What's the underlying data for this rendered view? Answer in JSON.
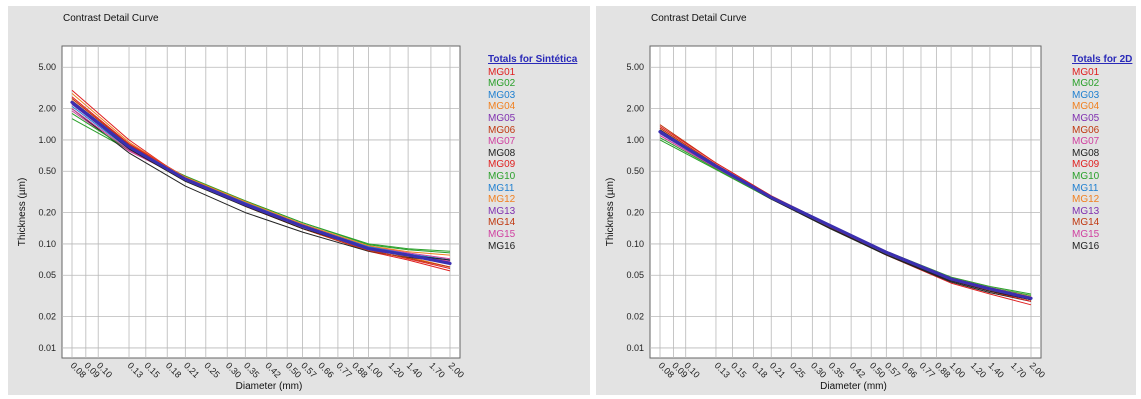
{
  "chart_data": [
    {
      "type": "line",
      "title": "Contrast Detail Curve",
      "xlabel": "Diameter (mm)",
      "ylabel": "Thickness (µm)",
      "yscale": "log",
      "ylim": [
        0.008,
        8
      ],
      "y_ticks": [
        5.0,
        2.0,
        1.0,
        0.5,
        0.2,
        0.1,
        0.05,
        0.02,
        0.01
      ],
      "y_tick_labels": [
        "5.00",
        "2.00",
        "1.00",
        "0.50",
        "0.20",
        "0.10",
        "0.05",
        "0.02",
        "0.01"
      ],
      "x_ticks": [
        0.08,
        0.09,
        0.1,
        0.13,
        0.15,
        0.18,
        0.21,
        0.25,
        0.3,
        0.35,
        0.42,
        0.5,
        0.57,
        0.66,
        0.77,
        0.88,
        1.0,
        1.2,
        1.4,
        1.7,
        2.0
      ],
      "x_tick_labels": [
        "0.08",
        "0.09",
        "0.10",
        "0.13",
        "0.15",
        "0.18",
        "0.21",
        "0.25",
        "0.30",
        "0.35",
        "0.42",
        "0.50",
        "0.57",
        "0.66",
        "0.77",
        "0.88",
        "1.00",
        "1.20",
        "1.40",
        "1.70",
        "2.00"
      ],
      "grid": true,
      "legend_title": "Totals for Sintética",
      "legend_position": "right",
      "x": [
        0.08,
        0.13,
        0.21,
        0.35,
        0.57,
        1.0,
        1.4,
        2.0
      ],
      "series": [
        {
          "name": "MG01",
          "color": "#e02020",
          "values": [
            3.0,
            1.0,
            0.42,
            0.23,
            0.14,
            0.085,
            0.07,
            0.055
          ]
        },
        {
          "name": "MG02",
          "color": "#2aa02a",
          "values": [
            1.6,
            0.8,
            0.45,
            0.26,
            0.16,
            0.1,
            0.09,
            0.085
          ]
        },
        {
          "name": "MG03",
          "color": "#2080d0",
          "values": [
            2.1,
            0.82,
            0.43,
            0.25,
            0.155,
            0.095,
            0.08,
            0.07
          ]
        },
        {
          "name": "MG04",
          "color": "#f08020",
          "values": [
            2.8,
            0.95,
            0.43,
            0.24,
            0.145,
            0.09,
            0.075,
            0.06
          ]
        },
        {
          "name": "MG05",
          "color": "#8030b0",
          "values": [
            2.3,
            0.86,
            0.43,
            0.245,
            0.15,
            0.092,
            0.078,
            0.066
          ]
        },
        {
          "name": "MG06",
          "color": "#c03810",
          "values": [
            2.5,
            0.9,
            0.44,
            0.25,
            0.15,
            0.093,
            0.078,
            0.065
          ]
        },
        {
          "name": "MG07",
          "color": "#d040a0",
          "values": [
            1.9,
            0.78,
            0.42,
            0.245,
            0.155,
            0.095,
            0.082,
            0.072
          ]
        },
        {
          "name": "MG08",
          "color": "#222222",
          "values": [
            2.0,
            0.75,
            0.36,
            0.2,
            0.13,
            0.085,
            0.074,
            0.068
          ]
        },
        {
          "name": "MG09",
          "color": "#e02020",
          "values": [
            2.6,
            0.92,
            0.44,
            0.24,
            0.145,
            0.088,
            0.072,
            0.058
          ]
        },
        {
          "name": "MG10",
          "color": "#2aa02a",
          "values": [
            1.8,
            0.8,
            0.44,
            0.26,
            0.16,
            0.098,
            0.088,
            0.082
          ]
        },
        {
          "name": "MG11",
          "color": "#2080d0",
          "values": [
            2.2,
            0.84,
            0.43,
            0.25,
            0.152,
            0.094,
            0.08,
            0.07
          ]
        },
        {
          "name": "MG12",
          "color": "#f08020",
          "values": [
            2.4,
            0.88,
            0.44,
            0.255,
            0.155,
            0.096,
            0.084,
            0.078
          ]
        },
        {
          "name": "MG13",
          "color": "#8030b0",
          "values": [
            2.2,
            0.83,
            0.41,
            0.235,
            0.145,
            0.09,
            0.077,
            0.065
          ]
        },
        {
          "name": "MG14",
          "color": "#c03810",
          "values": [
            2.5,
            0.9,
            0.42,
            0.23,
            0.14,
            0.086,
            0.073,
            0.06
          ]
        },
        {
          "name": "MG15",
          "color": "#d040a0",
          "values": [
            2.0,
            0.8,
            0.42,
            0.24,
            0.148,
            0.092,
            0.078,
            0.068
          ]
        },
        {
          "name": "MG16",
          "color": "#222222",
          "values": [
            2.3,
            0.82,
            0.4,
            0.23,
            0.14,
            0.09,
            0.078,
            0.07
          ]
        }
      ],
      "average": {
        "color": "#3b2fb0",
        "values": [
          2.3,
          0.86,
          0.42,
          0.24,
          0.148,
          0.09,
          0.078,
          0.065
        ]
      }
    },
    {
      "type": "line",
      "title": "Contrast Detail Curve",
      "xlabel": "Diameter (mm)",
      "ylabel": "Thickness (µm)",
      "yscale": "log",
      "ylim": [
        0.008,
        8
      ],
      "y_ticks": [
        5.0,
        2.0,
        1.0,
        0.5,
        0.2,
        0.1,
        0.05,
        0.02,
        0.01
      ],
      "y_tick_labels": [
        "5.00",
        "2.00",
        "1.00",
        "0.50",
        "0.20",
        "0.10",
        "0.05",
        "0.02",
        "0.01"
      ],
      "x_ticks": [
        0.08,
        0.09,
        0.1,
        0.13,
        0.15,
        0.18,
        0.21,
        0.25,
        0.3,
        0.35,
        0.42,
        0.5,
        0.57,
        0.66,
        0.77,
        0.88,
        1.0,
        1.2,
        1.4,
        1.7,
        2.0
      ],
      "x_tick_labels": [
        "0.08",
        "0.09",
        "0.10",
        "0.13",
        "0.15",
        "0.18",
        "0.21",
        "0.25",
        "0.30",
        "0.35",
        "0.42",
        "0.50",
        "0.57",
        "0.66",
        "0.77",
        "0.88",
        "1.00",
        "1.20",
        "1.40",
        "1.70",
        "2.00"
      ],
      "grid": true,
      "legend_title": "Totals for 2D",
      "legend_position": "right",
      "x": [
        0.08,
        0.13,
        0.21,
        0.35,
        0.57,
        1.0,
        1.4,
        2.0
      ],
      "series": [
        {
          "name": "MG01",
          "color": "#e02020",
          "values": [
            1.3,
            0.58,
            0.28,
            0.145,
            0.078,
            0.042,
            0.033,
            0.026
          ]
        },
        {
          "name": "MG02",
          "color": "#2aa02a",
          "values": [
            1.0,
            0.52,
            0.27,
            0.15,
            0.085,
            0.047,
            0.038,
            0.032
          ]
        },
        {
          "name": "MG03",
          "color": "#2080d0",
          "values": [
            1.15,
            0.55,
            0.28,
            0.15,
            0.083,
            0.046,
            0.037,
            0.03
          ]
        },
        {
          "name": "MG04",
          "color": "#f08020",
          "values": [
            1.25,
            0.57,
            0.285,
            0.152,
            0.084,
            0.046,
            0.036,
            0.029
          ]
        },
        {
          "name": "MG05",
          "color": "#8030b0",
          "values": [
            1.2,
            0.56,
            0.28,
            0.15,
            0.083,
            0.046,
            0.037,
            0.03
          ]
        },
        {
          "name": "MG06",
          "color": "#c03810",
          "values": [
            1.4,
            0.6,
            0.29,
            0.152,
            0.083,
            0.045,
            0.036,
            0.029
          ]
        },
        {
          "name": "MG07",
          "color": "#d040a0",
          "values": [
            1.1,
            0.54,
            0.28,
            0.152,
            0.085,
            0.047,
            0.038,
            0.031
          ]
        },
        {
          "name": "MG08",
          "color": "#222222",
          "values": [
            1.2,
            0.54,
            0.27,
            0.14,
            0.078,
            0.043,
            0.034,
            0.028
          ]
        },
        {
          "name": "MG09",
          "color": "#e02020",
          "values": [
            1.35,
            0.6,
            0.29,
            0.15,
            0.082,
            0.045,
            0.035,
            0.028
          ]
        },
        {
          "name": "MG10",
          "color": "#2aa02a",
          "values": [
            1.05,
            0.53,
            0.27,
            0.148,
            0.085,
            0.048,
            0.039,
            0.033
          ]
        },
        {
          "name": "MG11",
          "color": "#2080d0",
          "values": [
            1.15,
            0.55,
            0.28,
            0.15,
            0.084,
            0.046,
            0.037,
            0.031
          ]
        },
        {
          "name": "MG12",
          "color": "#f08020",
          "values": [
            1.2,
            0.56,
            0.285,
            0.153,
            0.085,
            0.047,
            0.038,
            0.031
          ]
        },
        {
          "name": "MG13",
          "color": "#8030b0",
          "values": [
            1.15,
            0.55,
            0.28,
            0.15,
            0.083,
            0.046,
            0.037,
            0.03
          ]
        },
        {
          "name": "MG14",
          "color": "#c03810",
          "values": [
            1.3,
            0.58,
            0.28,
            0.148,
            0.081,
            0.045,
            0.036,
            0.029
          ]
        },
        {
          "name": "MG15",
          "color": "#d040a0",
          "values": [
            1.1,
            0.54,
            0.275,
            0.148,
            0.082,
            0.046,
            0.037,
            0.03
          ]
        },
        {
          "name": "MG16",
          "color": "#222222",
          "values": [
            1.25,
            0.56,
            0.27,
            0.142,
            0.079,
            0.044,
            0.035,
            0.029
          ]
        }
      ],
      "average": {
        "color": "#3b2fb0",
        "values": [
          1.2,
          0.56,
          0.28,
          0.15,
          0.083,
          0.046,
          0.037,
          0.03
        ]
      }
    }
  ]
}
